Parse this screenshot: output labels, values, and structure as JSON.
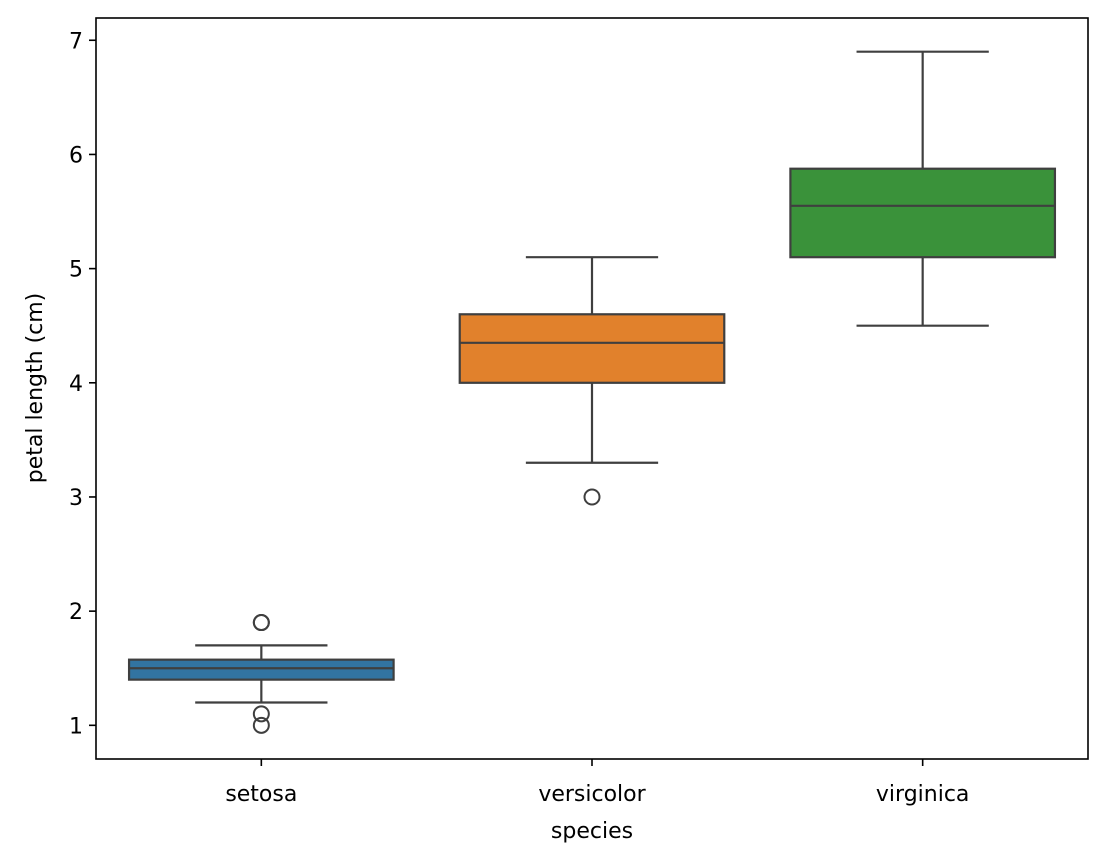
{
  "chart_data": {
    "type": "box",
    "xlabel": "species",
    "ylabel": "petal length (cm)",
    "ylim": [
      0.705,
      7.195
    ],
    "yticks": [
      1,
      2,
      3,
      4,
      5,
      6,
      7
    ],
    "grid": false,
    "categories": [
      "setosa",
      "versicolor",
      "virginica"
    ],
    "boxes": [
      {
        "category": "setosa",
        "color": "#3274a1",
        "whisker_low": 1.2,
        "q1": 1.4,
        "median": 1.5,
        "q3": 1.575,
        "whisker_high": 1.7,
        "outliers": [
          1.9,
          1.9,
          1.1,
          1.0
        ]
      },
      {
        "category": "versicolor",
        "color": "#e1812c",
        "whisker_low": 3.3,
        "q1": 4.0,
        "median": 4.35,
        "q3": 4.6,
        "whisker_high": 5.1,
        "outliers": [
          3.0
        ]
      },
      {
        "category": "virginica",
        "color": "#3a923a",
        "whisker_low": 4.5,
        "q1": 5.1,
        "median": 5.55,
        "q3": 5.875,
        "whisker_high": 6.9,
        "outliers": []
      }
    ]
  }
}
